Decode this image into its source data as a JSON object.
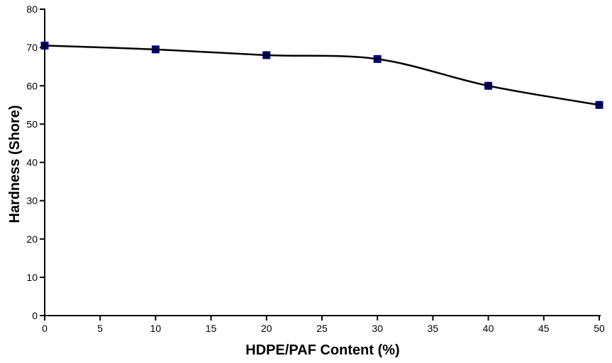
{
  "page": {
    "background": "#ffffff"
  },
  "chart_data": {
    "type": "line",
    "title": "",
    "xlabel": "HDPE/PAF Content (%)",
    "ylabel": "Hardness (Shore)",
    "x": [
      0,
      10,
      20,
      30,
      40,
      50
    ],
    "series": [
      {
        "name": "Hardness",
        "values": [
          70.5,
          69.5,
          68,
          67,
          60,
          55
        ]
      }
    ],
    "xlim": [
      0,
      50
    ],
    "ylim": [
      0,
      80
    ],
    "x_ticks": [
      0,
      5,
      10,
      15,
      20,
      25,
      30,
      35,
      40,
      45,
      50
    ],
    "y_ticks": [
      0,
      10,
      20,
      30,
      40,
      50,
      60,
      70,
      80
    ],
    "grid": false,
    "legend": "none",
    "line_color": "#000000",
    "marker_color": "#000080",
    "marker_shape": "square-with-cross",
    "axis_color": "#000000"
  }
}
